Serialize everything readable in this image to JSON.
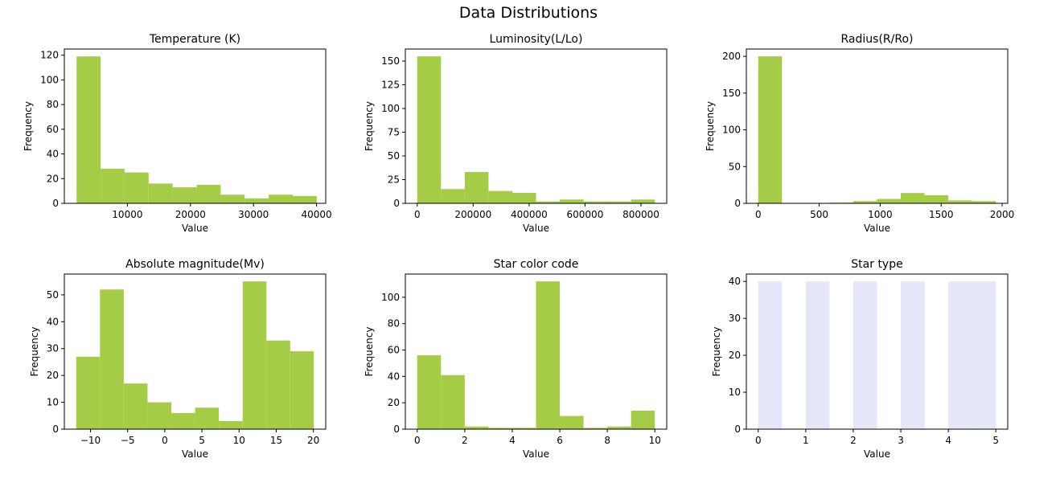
{
  "figure": {
    "title": "Data Distributions"
  },
  "chart_data": [
    {
      "type": "bar",
      "title": "Temperature (K)",
      "xlabel": "Value",
      "ylabel": "Frequency",
      "color": "#a5cc46",
      "bins": [
        [
          1939,
          5748
        ],
        [
          5748,
          9557
        ],
        [
          9557,
          13366
        ],
        [
          13366,
          17175
        ],
        [
          17175,
          20984
        ],
        [
          20984,
          24793
        ],
        [
          24793,
          28602
        ],
        [
          28602,
          32411
        ],
        [
          32411,
          36220
        ],
        [
          36220,
          40029
        ]
      ],
      "values": [
        119,
        28,
        25,
        16,
        13,
        15,
        7,
        4,
        7,
        6
      ],
      "xlim": [
        0,
        41452
      ],
      "ylim": [
        0,
        125
      ],
      "xticks": [
        10000,
        20000,
        30000,
        40000
      ],
      "yticks": [
        0,
        20,
        40,
        60,
        80,
        100,
        120
      ]
    },
    {
      "type": "bar",
      "title": "Luminosity(L/Lo)",
      "xlabel": "Value",
      "ylabel": "Frequency",
      "color": "#a5cc46",
      "bins": [
        [
          0,
          84960
        ],
        [
          84960,
          169920
        ],
        [
          169920,
          254880
        ],
        [
          254880,
          339840
        ],
        [
          339840,
          424800
        ],
        [
          424800,
          509760
        ],
        [
          509760,
          594720
        ],
        [
          594720,
          679680
        ],
        [
          679680,
          764640
        ],
        [
          764640,
          849600
        ]
      ],
      "values": [
        155,
        15,
        33,
        13,
        11,
        2,
        4,
        2,
        2,
        4
      ],
      "xlim": [
        -42480,
        892080
      ],
      "ylim": [
        0,
        162.75
      ],
      "xticks": [
        0,
        200000,
        400000,
        600000,
        800000
      ],
      "yticks": [
        0,
        25,
        50,
        75,
        100,
        125,
        150
      ]
    },
    {
      "type": "bar",
      "title": "Radius(R/Ro)",
      "xlabel": "Value",
      "ylabel": "Frequency",
      "color": "#a5cc46",
      "bins": [
        [
          0.0084,
          194.8
        ],
        [
          194.8,
          389.6
        ],
        [
          389.6,
          584.4
        ],
        [
          584.4,
          779.2
        ],
        [
          779.2,
          974.0
        ],
        [
          974.0,
          1168.8
        ],
        [
          1168.8,
          1363.6
        ],
        [
          1363.6,
          1558.4
        ],
        [
          1558.4,
          1753.2
        ],
        [
          1753.2,
          1948.5
        ]
      ],
      "values": [
        200,
        0,
        0,
        1,
        3,
        6,
        14,
        11,
        4,
        3
      ],
      "xlim": [
        -97.4,
        2045.9
      ],
      "ylim": [
        0,
        210
      ],
      "xticks": [
        0,
        500,
        1000,
        1500,
        2000
      ],
      "yticks": [
        0,
        50,
        100,
        150,
        200
      ]
    },
    {
      "type": "bar",
      "title": "Absolute magnitude(Mv)",
      "xlabel": "Value",
      "ylabel": "Frequency",
      "color": "#a5cc46",
      "bins": [
        [
          -11.92,
          -8.72
        ],
        [
          -8.72,
          -5.52
        ],
        [
          -5.52,
          -2.32
        ],
        [
          -2.32,
          0.88
        ],
        [
          0.88,
          4.08
        ],
        [
          4.08,
          7.28
        ],
        [
          7.28,
          10.48
        ],
        [
          10.48,
          13.68
        ],
        [
          13.68,
          16.88
        ],
        [
          16.88,
          20.06
        ]
      ],
      "values": [
        27,
        52,
        17,
        10,
        6,
        8,
        3,
        55,
        33,
        29
      ],
      "xlim": [
        -13.52,
        21.66
      ],
      "ylim": [
        0,
        57.75
      ],
      "xticks": [
        -10,
        -5,
        0,
        5,
        10,
        15,
        20
      ],
      "xtick_labels": [
        "−10",
        "−5",
        "0",
        "5",
        "10",
        "15",
        "20"
      ],
      "yticks": [
        0,
        10,
        20,
        30,
        40,
        50
      ]
    },
    {
      "type": "bar",
      "title": "Star color code",
      "xlabel": "Value",
      "ylabel": "Frequency",
      "color": "#a5cc46",
      "bins": [
        [
          0,
          1
        ],
        [
          1,
          2
        ],
        [
          2,
          3
        ],
        [
          3,
          4
        ],
        [
          4,
          5
        ],
        [
          5,
          6
        ],
        [
          6,
          7
        ],
        [
          7,
          8
        ],
        [
          8,
          9
        ],
        [
          9,
          10
        ]
      ],
      "values": [
        56,
        41,
        2,
        1,
        1,
        112,
        10,
        1,
        2,
        14
      ],
      "xlim": [
        -0.5,
        10.5
      ],
      "ylim": [
        0,
        117.6
      ],
      "xticks": [
        0,
        2,
        4,
        6,
        8,
        10
      ],
      "yticks": [
        0,
        20,
        40,
        60,
        80,
        100
      ]
    },
    {
      "type": "bar",
      "title": "Star type",
      "xlabel": "Value",
      "ylabel": "Frequency",
      "color": "#e6e6fa",
      "bins": [
        [
          0,
          0.5
        ],
        [
          1,
          1.5
        ],
        [
          2,
          2.5
        ],
        [
          3,
          3.5
        ],
        [
          4,
          4.5
        ],
        [
          4.5,
          5
        ]
      ],
      "values": [
        40,
        40,
        40,
        40,
        40,
        40
      ],
      "xlim": [
        -0.25,
        5.25
      ],
      "ylim": [
        0,
        42
      ],
      "xticks": [
        0,
        1,
        2,
        3,
        4,
        5
      ],
      "yticks": [
        0,
        10,
        20,
        30,
        40
      ]
    }
  ]
}
